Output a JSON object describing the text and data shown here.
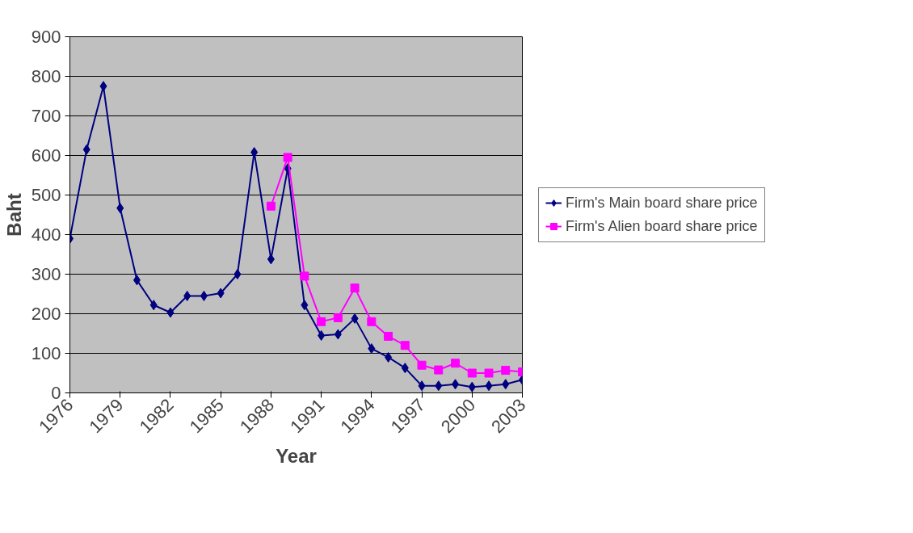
{
  "chart_data": {
    "type": "line",
    "xlabel": "Year",
    "ylabel": "Baht",
    "x": [
      1976,
      1977,
      1978,
      1979,
      1980,
      1981,
      1982,
      1983,
      1984,
      1985,
      1986,
      1987,
      1988,
      1989,
      1990,
      1991,
      1992,
      1993,
      1994,
      1995,
      1996,
      1997,
      1998,
      1999,
      2000,
      2001,
      2002,
      2003
    ],
    "series": [
      {
        "name": "Firm's Main board share price",
        "color": "#000080",
        "marker": "diamond",
        "values": [
          390,
          615,
          775,
          467,
          285,
          222,
          203,
          245,
          245,
          252,
          300,
          608,
          338,
          567,
          222,
          145,
          148,
          188,
          112,
          90,
          63,
          18,
          18,
          22,
          15,
          18,
          22,
          33
        ]
      },
      {
        "name": "Firm's Alien board share price",
        "color": "#ff00ff",
        "marker": "square",
        "values": [
          null,
          null,
          null,
          null,
          null,
          null,
          null,
          null,
          null,
          null,
          null,
          null,
          472,
          595,
          295,
          180,
          190,
          265,
          180,
          143,
          120,
          70,
          58,
          75,
          50,
          50,
          57,
          53
        ]
      }
    ],
    "xlim": [
      1976,
      2003
    ],
    "xticks": [
      1976,
      1979,
      1982,
      1985,
      1988,
      1991,
      1994,
      1997,
      2000,
      2003
    ],
    "ylim": [
      0,
      900
    ],
    "yticks": [
      0,
      100,
      200,
      300,
      400,
      500,
      600,
      700,
      800,
      900
    ],
    "grid": "y",
    "legend": "right"
  }
}
